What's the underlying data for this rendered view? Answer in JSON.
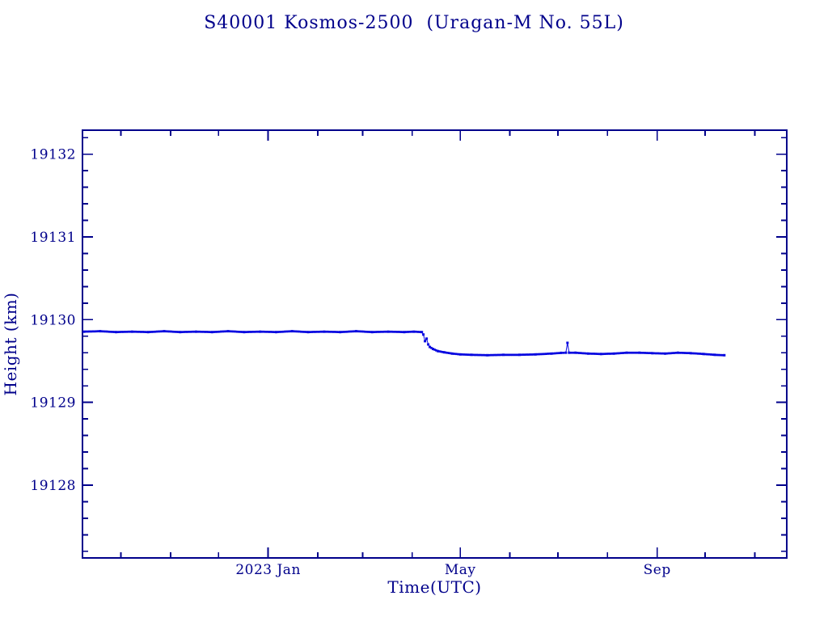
{
  "chart_data": {
    "type": "line",
    "title": "S40001 Kosmos-2500  (Uragan-M No. 55L)",
    "xlabel": "Time(UTC)",
    "ylabel": "Height (km)",
    "x_domain": [
      "2022-09-07",
      "2023-11-21"
    ],
    "y_domain": [
      19127.12,
      19132.29
    ],
    "y_ticks_major": [
      19128,
      19129,
      19130,
      19131,
      19132
    ],
    "y_minor_step": 0.2,
    "x_ticks_major": [
      {
        "date": "2023-01-01",
        "label": "2023 Jan"
      },
      {
        "date": "2023-05-01",
        "label": "May"
      },
      {
        "date": "2023-09-01",
        "label": "Sep"
      }
    ],
    "x_minor": "monthly",
    "grid": false,
    "legend": "none",
    "marker": "square",
    "colors": {
      "axis": "#00008b",
      "text": "#00008b",
      "series": "#0707e0"
    },
    "series": [
      {
        "name": "height",
        "points": [
          [
            "2022-09-08",
            19129.855
          ],
          [
            "2022-09-18",
            19129.86
          ],
          [
            "2022-09-28",
            19129.85
          ],
          [
            "2022-10-08",
            19129.855
          ],
          [
            "2022-10-18",
            19129.85
          ],
          [
            "2022-10-28",
            19129.86
          ],
          [
            "2022-11-07",
            19129.85
          ],
          [
            "2022-11-17",
            19129.855
          ],
          [
            "2022-11-27",
            19129.85
          ],
          [
            "2022-12-07",
            19129.86
          ],
          [
            "2022-12-17",
            19129.85
          ],
          [
            "2022-12-27",
            19129.855
          ],
          [
            "2023-01-06",
            19129.85
          ],
          [
            "2023-01-16",
            19129.86
          ],
          [
            "2023-01-26",
            19129.85
          ],
          [
            "2023-02-05",
            19129.855
          ],
          [
            "2023-02-15",
            19129.85
          ],
          [
            "2023-02-25",
            19129.86
          ],
          [
            "2023-03-07",
            19129.85
          ],
          [
            "2023-03-17",
            19129.855
          ],
          [
            "2023-03-27",
            19129.85
          ],
          [
            "2023-04-02",
            19129.855
          ],
          [
            "2023-04-07",
            19129.85
          ],
          [
            "2023-04-08",
            19129.82
          ],
          [
            "2023-04-09",
            19129.74
          ],
          [
            "2023-04-10",
            19129.77
          ],
          [
            "2023-04-11",
            19129.7
          ],
          [
            "2023-04-12",
            19129.67
          ],
          [
            "2023-04-14",
            19129.645
          ],
          [
            "2023-04-17",
            19129.62
          ],
          [
            "2023-04-21",
            19129.605
          ],
          [
            "2023-04-26",
            19129.59
          ],
          [
            "2023-05-01",
            19129.58
          ],
          [
            "2023-05-08",
            19129.575
          ],
          [
            "2023-05-18",
            19129.57
          ],
          [
            "2023-05-28",
            19129.575
          ],
          [
            "2023-06-07",
            19129.575
          ],
          [
            "2023-06-17",
            19129.58
          ],
          [
            "2023-06-27",
            19129.59
          ],
          [
            "2023-07-03",
            19129.598
          ],
          [
            "2023-07-06",
            19129.6
          ],
          [
            "2023-07-07",
            19129.72
          ],
          [
            "2023-07-08",
            19129.6
          ],
          [
            "2023-07-12",
            19129.6
          ],
          [
            "2023-07-20",
            19129.59
          ],
          [
            "2023-07-28",
            19129.585
          ],
          [
            "2023-08-05",
            19129.59
          ],
          [
            "2023-08-13",
            19129.6
          ],
          [
            "2023-08-21",
            19129.6
          ],
          [
            "2023-08-29",
            19129.595
          ],
          [
            "2023-09-06",
            19129.59
          ],
          [
            "2023-09-14",
            19129.6
          ],
          [
            "2023-09-22",
            19129.595
          ],
          [
            "2023-09-30",
            19129.585
          ],
          [
            "2023-10-07",
            19129.575
          ],
          [
            "2023-10-13",
            19129.57
          ]
        ]
      }
    ]
  }
}
